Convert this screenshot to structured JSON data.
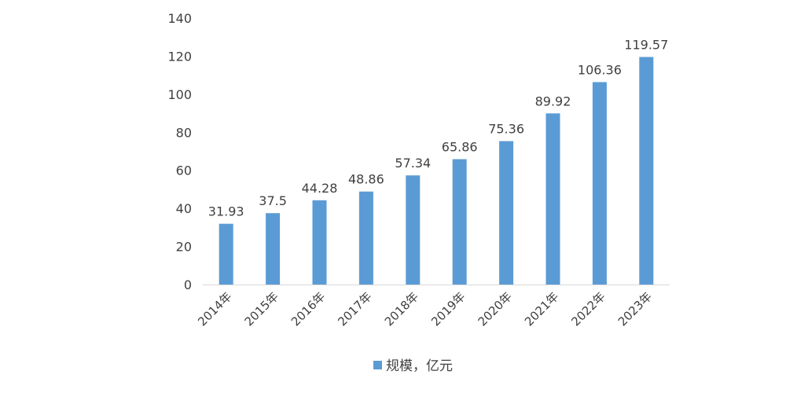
{
  "chart_data": {
    "type": "bar",
    "categories": [
      "2014年",
      "2015年",
      "2016年",
      "2017年",
      "2018年",
      "2019年",
      "2020年",
      "2021年",
      "2022年",
      "2023年"
    ],
    "series": [
      {
        "name": "规模，亿元",
        "values": [
          31.93,
          37.5,
          44.28,
          48.86,
          57.34,
          65.86,
          75.36,
          89.92,
          106.36,
          119.57
        ],
        "data_labels": [
          "31.93",
          "37.5",
          "44.28",
          "48.86",
          "57.34",
          "65.86",
          "75.36",
          "89.92",
          "106.36",
          "119.57"
        ]
      }
    ],
    "title": "",
    "xlabel": "",
    "ylabel": "",
    "ylim": [
      0,
      140
    ],
    "yticks": [
      0,
      20,
      40,
      60,
      80,
      100,
      120,
      140
    ],
    "grid": false,
    "legend_position": "bottom",
    "bar_color": "#5b9bd5"
  }
}
